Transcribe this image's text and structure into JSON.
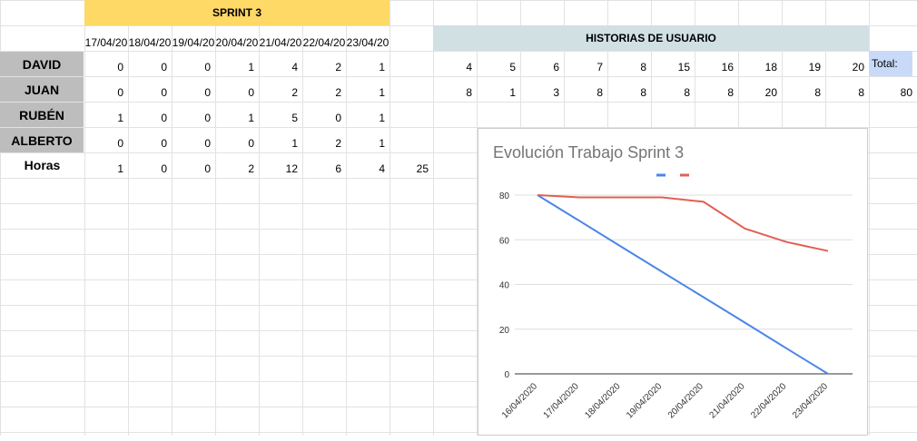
{
  "sheet": {
    "sprint_title": "SPRINT 3",
    "dates": [
      "17/04/20",
      "18/04/20",
      "19/04/20",
      "20/04/20",
      "21/04/20",
      "22/04/20",
      "23/04/20"
    ],
    "rows": [
      {
        "name": "DAVID",
        "values": [
          "0",
          "0",
          "0",
          "1",
          "4",
          "2",
          "1"
        ]
      },
      {
        "name": "JUAN",
        "values": [
          "0",
          "0",
          "0",
          "0",
          "2",
          "2",
          "1"
        ]
      },
      {
        "name": "RUBÉN",
        "values": [
          "1",
          "0",
          "0",
          "1",
          "5",
          "0",
          "1"
        ]
      },
      {
        "name": "ALBERTO",
        "values": [
          "0",
          "0",
          "0",
          "0",
          "1",
          "2",
          "1"
        ]
      }
    ],
    "hours": {
      "label": "Horas",
      "values": [
        "1",
        "0",
        "0",
        "2",
        "12",
        "6",
        "4"
      ],
      "sum": "25"
    },
    "stories": {
      "title": "HISTORIAS DE USUARIO",
      "row1": [
        "4",
        "5",
        "6",
        "7",
        "8",
        "15",
        "16",
        "18",
        "19",
        "20"
      ],
      "row2": [
        "8",
        "1",
        "3",
        "8",
        "8",
        "8",
        "8",
        "20",
        "8",
        "8"
      ],
      "total_label": "Total:",
      "total_value": "80"
    }
  },
  "chart_data": {
    "type": "line",
    "title": "Evolución Trabajo Sprint 3",
    "categories": [
      "16/04/2020",
      "17/04/2020",
      "18/04/2020",
      "19/04/2020",
      "20/04/2020",
      "21/04/2020",
      "22/04/2020",
      "23/04/2020"
    ],
    "series": [
      {
        "values": [
          80,
          68.6,
          57.1,
          45.7,
          34.3,
          22.9,
          11.4,
          0
        ],
        "color": "#4a86e8"
      },
      {
        "values": [
          80,
          79,
          79,
          79,
          77,
          65,
          59,
          55
        ],
        "color": "#e06055"
      }
    ],
    "yticks": [
      0,
      20,
      40,
      60,
      80
    ],
    "ylim": [
      0,
      80
    ],
    "grid": true,
    "legend": "top"
  }
}
